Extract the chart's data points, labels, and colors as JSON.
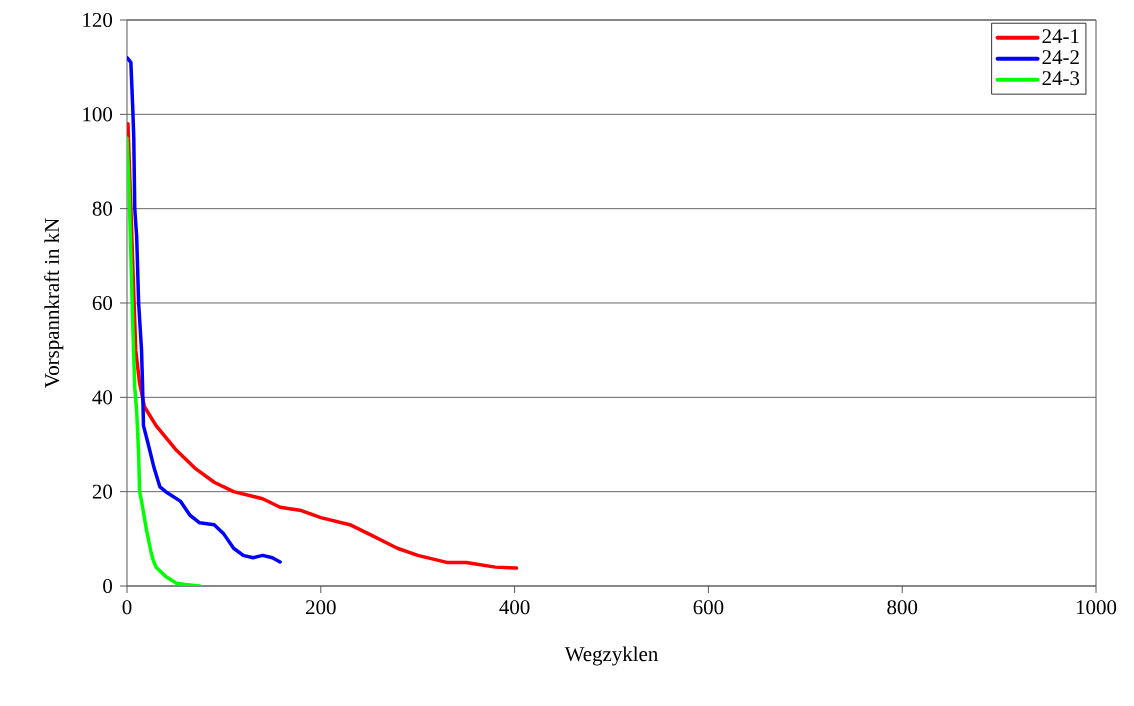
{
  "chart_data": {
    "type": "line",
    "xlabel": "Wegzyklen",
    "ylabel": "Vorspannkraft in kN",
    "xlim": [
      0,
      1000
    ],
    "xticks": [
      0,
      200,
      400,
      600,
      800,
      1000
    ],
    "ylim": [
      0,
      120
    ],
    "yticks": [
      0,
      20,
      40,
      60,
      80,
      100,
      120
    ],
    "grid": "y",
    "legend": "top right",
    "line_style": "solid",
    "marker": "none",
    "series": [
      {
        "name": "24-1",
        "color": "#ff0000",
        "x": [
          1,
          2,
          4,
          7,
          9,
          13,
          18,
          30,
          50,
          70,
          90,
          110,
          140,
          158,
          180,
          200,
          230,
          250,
          279,
          300,
          330,
          350,
          380,
          402
        ],
        "values": [
          98,
          92,
          80,
          62,
          50,
          43,
          38,
          34,
          29,
          25,
          22,
          20,
          18.5,
          16.7,
          16,
          14.5,
          13,
          11,
          8,
          6.5,
          5,
          5,
          4,
          3.8
        ]
      },
      {
        "name": "24-2",
        "color": "#0000ff",
        "x": [
          0,
          4,
          6,
          7,
          8,
          10,
          12,
          15,
          16,
          17,
          22,
          28,
          34,
          40,
          55,
          65,
          75,
          90,
          100,
          110,
          120,
          130,
          140,
          150,
          158
        ],
        "values": [
          112,
          111,
          101,
          95,
          80,
          74,
          60,
          50,
          43,
          34,
          30,
          25,
          21,
          20,
          18,
          15,
          13.4,
          13,
          11,
          8,
          6.5,
          6,
          6.5,
          6,
          5.1
        ]
      },
      {
        "name": "24-3",
        "color": "#00ff00",
        "x": [
          0,
          2,
          4,
          6,
          8,
          10,
          12,
          13,
          15,
          20,
          25,
          27,
          30,
          40,
          51,
          60,
          75
        ],
        "values": [
          95,
          85,
          70,
          55,
          42,
          37,
          28,
          20,
          18,
          12,
          7,
          5.5,
          4,
          2,
          0.6,
          0.3,
          0
        ]
      }
    ]
  }
}
